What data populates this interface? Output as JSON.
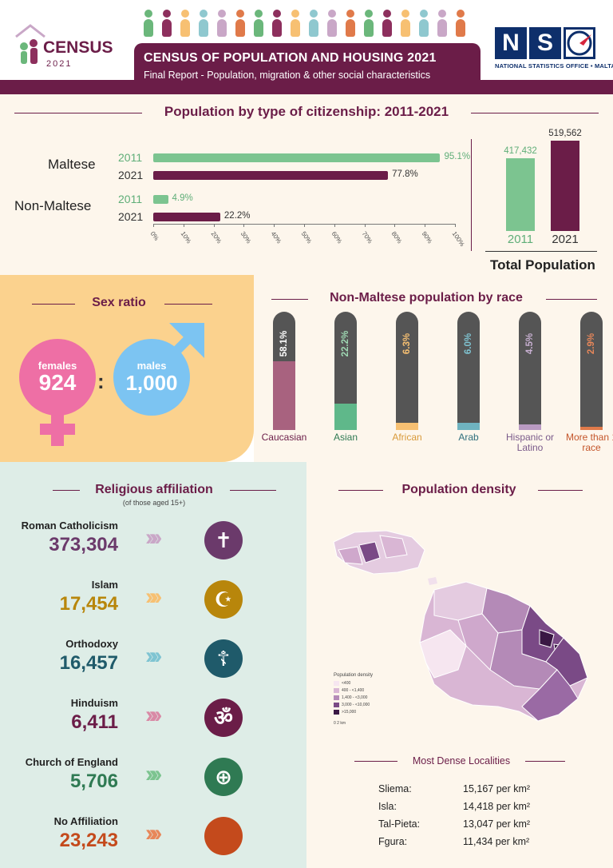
{
  "header": {
    "title": "CENSUS OF POPULATION AND HOUSING 2021",
    "subtitle": "Final Report - Population, migration & other social characteristics",
    "census_logo_word": "CENSUS",
    "census_logo_year": "2021",
    "nso_letters": [
      "N",
      "S",
      "O"
    ],
    "nso_subtitle": "NATIONAL STATISTICS OFFICE • MALTA",
    "figure_colors": [
      "#6bb77b",
      "#8d2f5d",
      "#f7c072",
      "#8fc8cf",
      "#c9a7c7",
      "#e07a4a",
      "#6bb77b",
      "#8d2f5d",
      "#f7c072",
      "#8fc8cf",
      "#c9a7c7",
      "#e07a4a",
      "#6bb77b",
      "#8d2f5d",
      "#f7c072",
      "#8fc8cf",
      "#c9a7c7",
      "#e07a4a"
    ]
  },
  "citizenship": {
    "title": "Population by type of citizenship: 2011-2021",
    "colors": {
      "y2011": "#7cc490",
      "y2021": "#6b1d48"
    },
    "chart_data": {
      "type": "bar",
      "orientation": "horizontal",
      "categories": [
        "Maltese",
        "Non-Maltese"
      ],
      "series": [
        {
          "name": "2011",
          "values": [
            95.1,
            4.9
          ],
          "labels": [
            "95.1%",
            "4.9%"
          ]
        },
        {
          "name": "2021",
          "values": [
            77.8,
            22.2
          ],
          "labels": [
            "77.8%",
            "22.2%"
          ]
        }
      ],
      "xlim": [
        0,
        100
      ],
      "xticks": [
        "0%",
        "10%",
        "20%",
        "30%",
        "40%",
        "50%",
        "60%",
        "70%",
        "80%",
        "90%",
        "100%"
      ]
    },
    "total": {
      "label": "Total Population",
      "chart_data": {
        "type": "bar",
        "categories": [
          "2011",
          "2021"
        ],
        "values": [
          417432,
          519562
        ],
        "labels": [
          "417,432",
          "519,562"
        ],
        "ylim": [
          0,
          519562
        ]
      }
    }
  },
  "sex_ratio": {
    "title": "Sex ratio",
    "females_label": "females",
    "females_value": "924",
    "males_label": "males",
    "males_value": "1,000",
    "separator": ":",
    "female_color": "#ee6fa5",
    "male_color": "#7cc4f2"
  },
  "race": {
    "title": "Non-Maltese population by race",
    "chart_data": {
      "type": "bar",
      "categories": [
        "Caucasian",
        "Asian",
        "African",
        "Arab",
        "Hispanic or Latino",
        "More than 1 race"
      ],
      "values": [
        58.1,
        22.2,
        6.3,
        6.0,
        4.5,
        2.9
      ],
      "labels": [
        "58.1%",
        "22.2%",
        "6.3%",
        "6.0%",
        "4.5%",
        "2.9%"
      ],
      "colors": [
        "#a8627f",
        "#5fb88a",
        "#f7c072",
        "#6fb3c0",
        "#b99ac2",
        "#e07a4a"
      ],
      "label_colors": [
        "#ffffff",
        "#9fd9b3",
        "#f7c072",
        "#7fc4d2",
        "#c8b0d2",
        "#e8875a"
      ],
      "name_colors": [
        "#6b1d48",
        "#2f7a53",
        "#d99a3a",
        "#2f6f7d",
        "#7a5a8a",
        "#c4552a"
      ],
      "ylim": [
        0,
        100
      ]
    }
  },
  "religion": {
    "title": "Religious affiliation",
    "subtitle": "(of those aged 15+)",
    "items": [
      {
        "name": "Roman Catholicism",
        "value": "373,304",
        "color": "#6b3a6b",
        "chev": "#c9a7c7",
        "glyph": "✝"
      },
      {
        "name": "Islam",
        "value": "17,454",
        "color": "#b8860b",
        "chev": "#f7c072",
        "glyph": "☪"
      },
      {
        "name": "Orthodoxy",
        "value": "16,457",
        "color": "#1f5a6a",
        "chev": "#7fc4d2",
        "glyph": "☦"
      },
      {
        "name": "Hinduism",
        "value": "6,411",
        "color": "#6b1d48",
        "chev": "#d98aa6",
        "glyph": "ॐ"
      },
      {
        "name": "Church of England",
        "value": "5,706",
        "color": "#2f7a53",
        "chev": "#7cc490",
        "glyph": "⊕"
      },
      {
        "name": "No Affiliation",
        "value": "23,243",
        "color": "#c44a1c",
        "chev": "#e8875a",
        "glyph": ""
      }
    ]
  },
  "density": {
    "title": "Population density",
    "legend_title": "Population density",
    "legend": [
      {
        "label": "<400",
        "color": "#f6e6f0"
      },
      {
        "label": "400 - <1,400",
        "color": "#d9b6d4"
      },
      {
        "label": "1,400 - <3,000",
        "color": "#b48ab7"
      },
      {
        "label": "3,000 - <10,000",
        "color": "#7a4a86"
      },
      {
        "label": ">15,000",
        "color": "#3a1844"
      }
    ],
    "scale_label": "0     2 km",
    "dense_title": "Most Dense Localities",
    "localities": [
      {
        "name": "Sliema:",
        "value": "15,167 per km²"
      },
      {
        "name": "Isla:",
        "value": "14,418 per km²"
      },
      {
        "name": "Tal-Pieta:",
        "value": "13,047 per km²"
      },
      {
        "name": "Fgura:",
        "value": "11,434 per km²"
      }
    ]
  }
}
